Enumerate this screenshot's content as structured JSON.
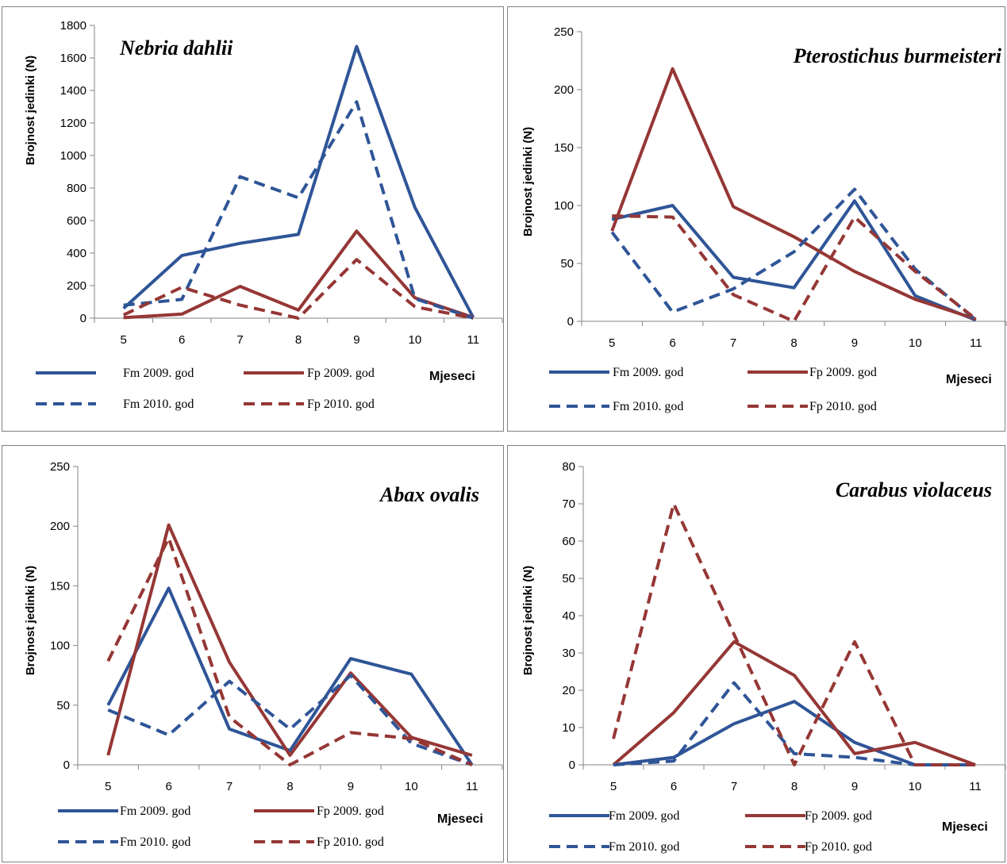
{
  "chart_data": [
    {
      "type": "line",
      "title": "Nebria dahlii",
      "xlabel": "Mjeseci",
      "ylabel": "Brojnost jedinki (N)",
      "x": [
        5,
        6,
        7,
        8,
        9,
        10,
        11
      ],
      "ylim": [
        0,
        1800
      ],
      "yticks": [
        0,
        200,
        400,
        600,
        800,
        1000,
        1200,
        1400,
        1600,
        1800
      ],
      "grid": false,
      "series": [
        {
          "name": "Fm 2009. god",
          "color": "#2F5597",
          "dash": "solid",
          "values": [
            60,
            385,
            460,
            515,
            1670,
            680,
            5
          ]
        },
        {
          "name": "Fp 2009. god",
          "color": "#953735",
          "dash": "solid",
          "values": [
            3,
            25,
            195,
            50,
            535,
            125,
            5
          ]
        },
        {
          "name": "Fm 2010. god",
          "color": "#2F5597",
          "dash": "dashed",
          "values": [
            80,
            115,
            870,
            740,
            1330,
            120,
            0
          ]
        },
        {
          "name": "Fp 2010. god",
          "color": "#953735",
          "dash": "dashed",
          "values": [
            20,
            190,
            80,
            0,
            360,
            70,
            0
          ]
        }
      ]
    },
    {
      "type": "line",
      "title": "Pterostichus burmeisteri",
      "xlabel": "Mjeseci",
      "ylabel": "Brojnost jedinki (N)",
      "x": [
        5,
        6,
        7,
        8,
        9,
        10,
        11
      ],
      "ylim": [
        0,
        250
      ],
      "yticks": [
        0,
        50,
        100,
        150,
        200,
        250
      ],
      "grid": false,
      "series": [
        {
          "name": "Fm 2009. god",
          "color": "#2F5597",
          "dash": "solid",
          "values": [
            88,
            100,
            38,
            29,
            104,
            22,
            1
          ]
        },
        {
          "name": "Fp 2009. god",
          "color": "#953735",
          "dash": "solid",
          "values": [
            78,
            218,
            99,
            73,
            43,
            19,
            2
          ]
        },
        {
          "name": "Fm 2010. god",
          "color": "#2F5597",
          "dash": "dashed",
          "values": [
            77,
            8,
            28,
            60,
            114,
            45,
            1
          ]
        },
        {
          "name": "Fp 2010. god",
          "color": "#953735",
          "dash": "dashed",
          "values": [
            91,
            90,
            23,
            0,
            90,
            43,
            2
          ]
        }
      ]
    },
    {
      "type": "line",
      "title": "Abax ovalis",
      "xlabel": "Mjeseci",
      "ylabel": "Brojnost jedinki (N)",
      "x": [
        5,
        6,
        7,
        8,
        9,
        10,
        11
      ],
      "ylim": [
        0,
        250
      ],
      "yticks": [
        0,
        50,
        100,
        150,
        200,
        250
      ],
      "grid": false,
      "series": [
        {
          "name": "Fm 2009. god",
          "color": "#2F5597",
          "dash": "solid",
          "values": [
            50,
            148,
            30,
            12,
            89,
            76,
            0
          ]
        },
        {
          "name": "Fp 2009. god",
          "color": "#953735",
          "dash": "solid",
          "values": [
            8,
            201,
            86,
            8,
            77,
            23,
            8
          ]
        },
        {
          "name": "Fm 2010. god",
          "color": "#2F5597",
          "dash": "dashed",
          "values": [
            46,
            25,
            70,
            30,
            75,
            18,
            0
          ]
        },
        {
          "name": "Fp 2010. god",
          "color": "#953735",
          "dash": "dashed",
          "values": [
            87,
            190,
            40,
            0,
            27,
            22,
            0
          ]
        }
      ]
    },
    {
      "type": "line",
      "title": "Carabus violaceus",
      "xlabel": "Mjeseci",
      "ylabel": "Brojnost jedinki (N)",
      "x": [
        5,
        6,
        7,
        8,
        9,
        10,
        11
      ],
      "ylim": [
        0,
        80
      ],
      "yticks": [
        0,
        10,
        20,
        30,
        40,
        50,
        60,
        70,
        80
      ],
      "grid": false,
      "series": [
        {
          "name": "Fm 2009. god",
          "color": "#2F5597",
          "dash": "solid",
          "values": [
            0,
            2,
            11,
            17,
            6,
            0,
            0
          ]
        },
        {
          "name": "Fp 2009. god",
          "color": "#953735",
          "dash": "solid",
          "values": [
            0,
            14,
            33,
            24,
            3,
            6,
            0
          ]
        },
        {
          "name": "Fm 2010. god",
          "color": "#2F5597",
          "dash": "dashed",
          "values": [
            0,
            1,
            22,
            3,
            2,
            0,
            0
          ]
        },
        {
          "name": "Fp 2010. god",
          "color": "#953735",
          "dash": "dashed",
          "values": [
            7,
            70,
            35,
            0,
            33,
            0,
            0
          ]
        }
      ]
    }
  ]
}
